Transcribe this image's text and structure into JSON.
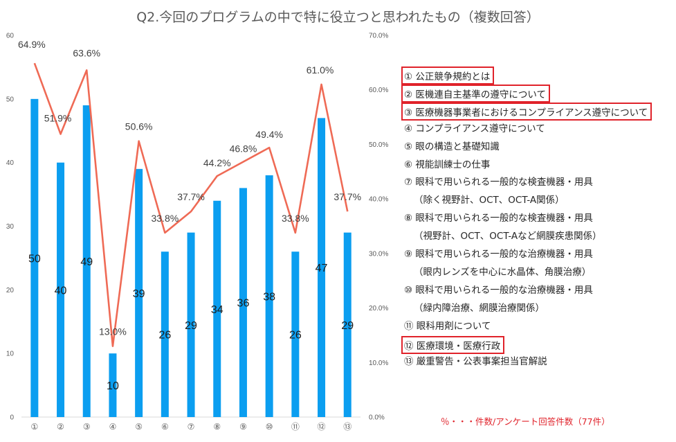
{
  "chart_data": {
    "type": "bar",
    "title": "Q2.今回のプログラムの中で特に役立つと思われたもの（複数回答）",
    "categories": [
      "①",
      "②",
      "③",
      "④",
      "⑤",
      "⑥",
      "⑦",
      "⑧",
      "⑨",
      "⑩",
      "⑪",
      "⑫",
      "⑬"
    ],
    "series": [
      {
        "values": [
          50,
          40,
          49,
          10,
          39,
          26,
          29,
          34,
          36,
          38,
          26,
          47,
          29
        ]
      },
      {
        "type": "line",
        "values": [
          64.9,
          51.9,
          63.6,
          13.0,
          50.6,
          33.8,
          37.7,
          44.2,
          46.8,
          49.4,
          33.8,
          61.0,
          37.7
        ],
        "labels": [
          "64.9%",
          "51.9%",
          "63.6%",
          "13.0%",
          "50.6%",
          "33.8%",
          "37.7%",
          "44.2%",
          "46.8%",
          "49.4%",
          "33.8%",
          "61.0%",
          "37.7%"
        ]
      }
    ],
    "ylim": [
      0,
      60
    ],
    "y_ticks": [
      "0",
      "10",
      "20",
      "30",
      "40",
      "50",
      "60"
    ],
    "y2lim": [
      0,
      70
    ],
    "y2_ticks": [
      "0.0%",
      "10.0%",
      "20.0%",
      "30.0%",
      "40.0%",
      "50.0%",
      "60.0%",
      "70.0%"
    ],
    "colors": {
      "bar": "#0b9ef0",
      "line": "#ef6a55",
      "highlight": "#e0222a"
    },
    "grid": false
  },
  "legend": [
    {
      "text": "① 公正競争規約とは",
      "highlight": true
    },
    {
      "text": "② 医機連自主基準の遵守について",
      "highlight": true
    },
    {
      "text": "③ 医療機器事業者におけるコンプライアンス遵守について",
      "highlight": true
    },
    {
      "text": "④ コンプライアンス遵守について",
      "highlight": false
    },
    {
      "text": "⑤ 眼の構造と基礎知識",
      "highlight": false
    },
    {
      "text": "⑥ 視能訓練士の仕事",
      "highlight": false
    },
    {
      "text": "⑦ 眼科で用いられる一般的な検査機器・用具",
      "highlight": false
    },
    {
      "text": "（除く視野計、OCT、OCT-A関係）",
      "highlight": false,
      "indent": true
    },
    {
      "text": "⑧ 眼科で用いられる一般的な検査機器・用具",
      "highlight": false
    },
    {
      "text": "（視野計、OCT、OCT-Aなど網膜疾患関係）",
      "highlight": false,
      "indent": true
    },
    {
      "text": "⑨ 眼科で用いられる一般的な治療機器・用具",
      "highlight": false
    },
    {
      "text": "（眼内レンズを中心に水晶体、角膜治療）",
      "highlight": false,
      "indent": true
    },
    {
      "text": "⑩ 眼科で用いられる一般的な治療機器・用具",
      "highlight": false
    },
    {
      "text": "（緑内障治療、網膜治療関係）",
      "highlight": false,
      "indent": true
    },
    {
      "text": "⑪ 眼科用剤について",
      "highlight": false
    },
    {
      "text": "⑫ 医療環境・医療行政",
      "highlight": true
    },
    {
      "text": "⑬ 厳重警告・公表事案担当官解説",
      "highlight": false
    }
  ],
  "note": "％・・・件数/アンケート回答件数（77件）"
}
